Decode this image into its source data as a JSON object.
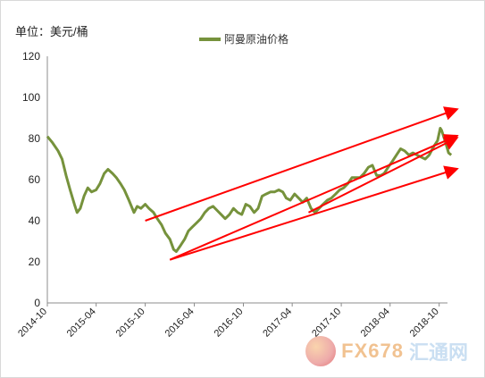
{
  "chart_data": {
    "type": "line",
    "unit_label": "单位：美元/桶",
    "series": [
      {
        "name": "阿曼原油价格",
        "color": "#76923c",
        "points": [
          [
            "2014-10-01",
            81
          ],
          [
            "2014-10-20",
            78
          ],
          [
            "2014-11-10",
            74
          ],
          [
            "2014-11-25",
            70
          ],
          [
            "2014-12-10",
            62
          ],
          [
            "2014-12-25",
            55
          ],
          [
            "2015-01-10",
            48
          ],
          [
            "2015-01-20",
            44
          ],
          [
            "2015-02-01",
            46
          ],
          [
            "2015-02-15",
            52
          ],
          [
            "2015-03-01",
            56
          ],
          [
            "2015-03-15",
            54
          ],
          [
            "2015-04-01",
            55
          ],
          [
            "2015-04-15",
            58
          ],
          [
            "2015-05-01",
            63
          ],
          [
            "2015-05-15",
            65
          ],
          [
            "2015-06-01",
            63
          ],
          [
            "2015-06-15",
            61
          ],
          [
            "2015-07-01",
            58
          ],
          [
            "2015-07-15",
            55
          ],
          [
            "2015-08-01",
            50
          ],
          [
            "2015-08-20",
            44
          ],
          [
            "2015-09-01",
            47
          ],
          [
            "2015-09-15",
            46
          ],
          [
            "2015-10-01",
            48
          ],
          [
            "2015-10-15",
            46
          ],
          [
            "2015-11-01",
            44
          ],
          [
            "2015-11-15",
            41
          ],
          [
            "2015-12-01",
            38
          ],
          [
            "2015-12-15",
            34
          ],
          [
            "2016-01-01",
            31
          ],
          [
            "2016-01-15",
            26
          ],
          [
            "2016-01-25",
            25
          ],
          [
            "2016-02-10",
            28
          ],
          [
            "2016-02-25",
            31
          ],
          [
            "2016-03-10",
            35
          ],
          [
            "2016-03-25",
            37
          ],
          [
            "2016-04-10",
            39
          ],
          [
            "2016-04-25",
            41
          ],
          [
            "2016-05-10",
            44
          ],
          [
            "2016-05-25",
            46
          ],
          [
            "2016-06-10",
            47
          ],
          [
            "2016-06-25",
            45
          ],
          [
            "2016-07-10",
            43
          ],
          [
            "2016-07-25",
            41
          ],
          [
            "2016-08-10",
            43
          ],
          [
            "2016-08-25",
            46
          ],
          [
            "2016-09-10",
            44
          ],
          [
            "2016-09-25",
            43
          ],
          [
            "2016-10-10",
            48
          ],
          [
            "2016-10-25",
            47
          ],
          [
            "2016-11-10",
            44
          ],
          [
            "2016-11-25",
            46
          ],
          [
            "2016-12-10",
            52
          ],
          [
            "2016-12-25",
            53
          ],
          [
            "2017-01-10",
            54
          ],
          [
            "2017-01-25",
            54
          ],
          [
            "2017-02-10",
            55
          ],
          [
            "2017-02-25",
            54
          ],
          [
            "2017-03-10",
            51
          ],
          [
            "2017-03-25",
            50
          ],
          [
            "2017-04-10",
            53
          ],
          [
            "2017-04-25",
            51
          ],
          [
            "2017-05-10",
            49
          ],
          [
            "2017-05-25",
            51
          ],
          [
            "2017-06-10",
            46
          ],
          [
            "2017-06-25",
            44
          ],
          [
            "2017-07-10",
            46
          ],
          [
            "2017-07-25",
            48
          ],
          [
            "2017-08-10",
            50
          ],
          [
            "2017-08-25",
            51
          ],
          [
            "2017-09-10",
            53
          ],
          [
            "2017-09-25",
            55
          ],
          [
            "2017-10-10",
            56
          ],
          [
            "2017-10-25",
            58
          ],
          [
            "2017-11-10",
            61
          ],
          [
            "2017-11-25",
            61
          ],
          [
            "2017-12-10",
            61
          ],
          [
            "2017-12-25",
            63
          ],
          [
            "2018-01-10",
            66
          ],
          [
            "2018-01-25",
            67
          ],
          [
            "2018-02-10",
            62
          ],
          [
            "2018-02-25",
            62
          ],
          [
            "2018-03-10",
            63
          ],
          [
            "2018-03-25",
            66
          ],
          [
            "2018-04-10",
            69
          ],
          [
            "2018-04-25",
            72
          ],
          [
            "2018-05-10",
            75
          ],
          [
            "2018-05-25",
            74
          ],
          [
            "2018-06-10",
            72
          ],
          [
            "2018-06-25",
            73
          ],
          [
            "2018-07-10",
            72
          ],
          [
            "2018-07-25",
            71
          ],
          [
            "2018-08-10",
            70
          ],
          [
            "2018-08-25",
            72
          ],
          [
            "2018-09-10",
            76
          ],
          [
            "2018-09-25",
            79
          ],
          [
            "2018-10-05",
            85
          ],
          [
            "2018-10-10",
            84
          ],
          [
            "2018-10-25",
            78
          ],
          [
            "2018-11-05",
            73
          ],
          [
            "2018-11-15",
            72
          ]
        ]
      }
    ],
    "x_ticks": [
      "2014-10",
      "2015-04",
      "2015-10",
      "2016-04",
      "2016-10",
      "2017-04",
      "2017-10",
      "2018-04",
      "2018-10"
    ],
    "y_ticks": [
      0,
      20,
      40,
      60,
      80,
      100,
      120
    ],
    "ylim": [
      0,
      120
    ],
    "xlim": [
      "2014-10",
      "2018-11"
    ],
    "trend_arrows": [
      {
        "color": "#ff0000",
        "from": [
          "2015-10",
          40
        ],
        "to": [
          "2018-12",
          94
        ]
      },
      {
        "color": "#ff0000",
        "from": [
          "2016-01",
          21
        ],
        "to": [
          "2018-12",
          81
        ]
      },
      {
        "color": "#ff0000",
        "from": [
          "2017-06",
          44
        ],
        "to": [
          "2018-12",
          80
        ]
      },
      {
        "color": "#ff0000",
        "from": [
          "2016-01",
          21
        ],
        "to": [
          "2018-12",
          65
        ]
      }
    ]
  },
  "watermark": {
    "text": "FX678",
    "text2": "汇通网"
  }
}
